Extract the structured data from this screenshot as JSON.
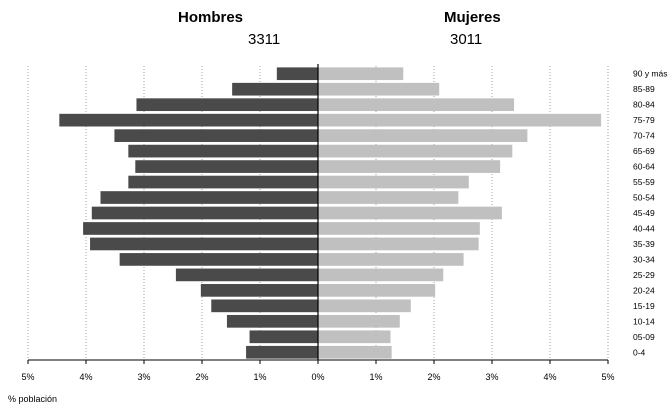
{
  "header": {
    "men_label": "Hombres",
    "men_total": "3311",
    "women_label": "Mujeres",
    "women_total": "3011"
  },
  "footnote": "% población",
  "chart_data": {
    "type": "bar",
    "orientation": "horizontal-population-pyramid",
    "x_unit": "% población",
    "xlim": [
      -5,
      5
    ],
    "x_ticks": [
      -5,
      -4,
      -3,
      -2,
      -1,
      0,
      1,
      2,
      3,
      4,
      5
    ],
    "x_tick_labels": [
      "5%",
      "4%",
      "3%",
      "2%",
      "1%",
      "0%",
      "1%",
      "2%",
      "3%",
      "4%",
      "5%"
    ],
    "grid": true,
    "categories": [
      "90 y más",
      "85-89",
      "80-84",
      "75-79",
      "70-74",
      "65-69",
      "60-64",
      "55-59",
      "50-54",
      "45-49",
      "40-44",
      "35-39",
      "30-34",
      "25-29",
      "20-24",
      "15-19",
      "10-14",
      "05-09",
      "0-4"
    ],
    "series": [
      {
        "name": "Hombres",
        "color": "#4a4a4a",
        "values": [
          0.71,
          1.48,
          3.13,
          4.46,
          3.51,
          3.27,
          3.15,
          3.27,
          3.75,
          3.9,
          4.05,
          3.93,
          3.42,
          2.45,
          2.02,
          1.84,
          1.57,
          1.18,
          1.24
        ]
      },
      {
        "name": "Mujeres",
        "color": "#c0c0c0",
        "values": [
          1.47,
          2.09,
          3.38,
          4.88,
          3.61,
          3.35,
          3.14,
          2.6,
          2.42,
          3.17,
          2.79,
          2.77,
          2.51,
          2.16,
          2.02,
          1.6,
          1.41,
          1.25,
          1.27
        ]
      }
    ]
  }
}
